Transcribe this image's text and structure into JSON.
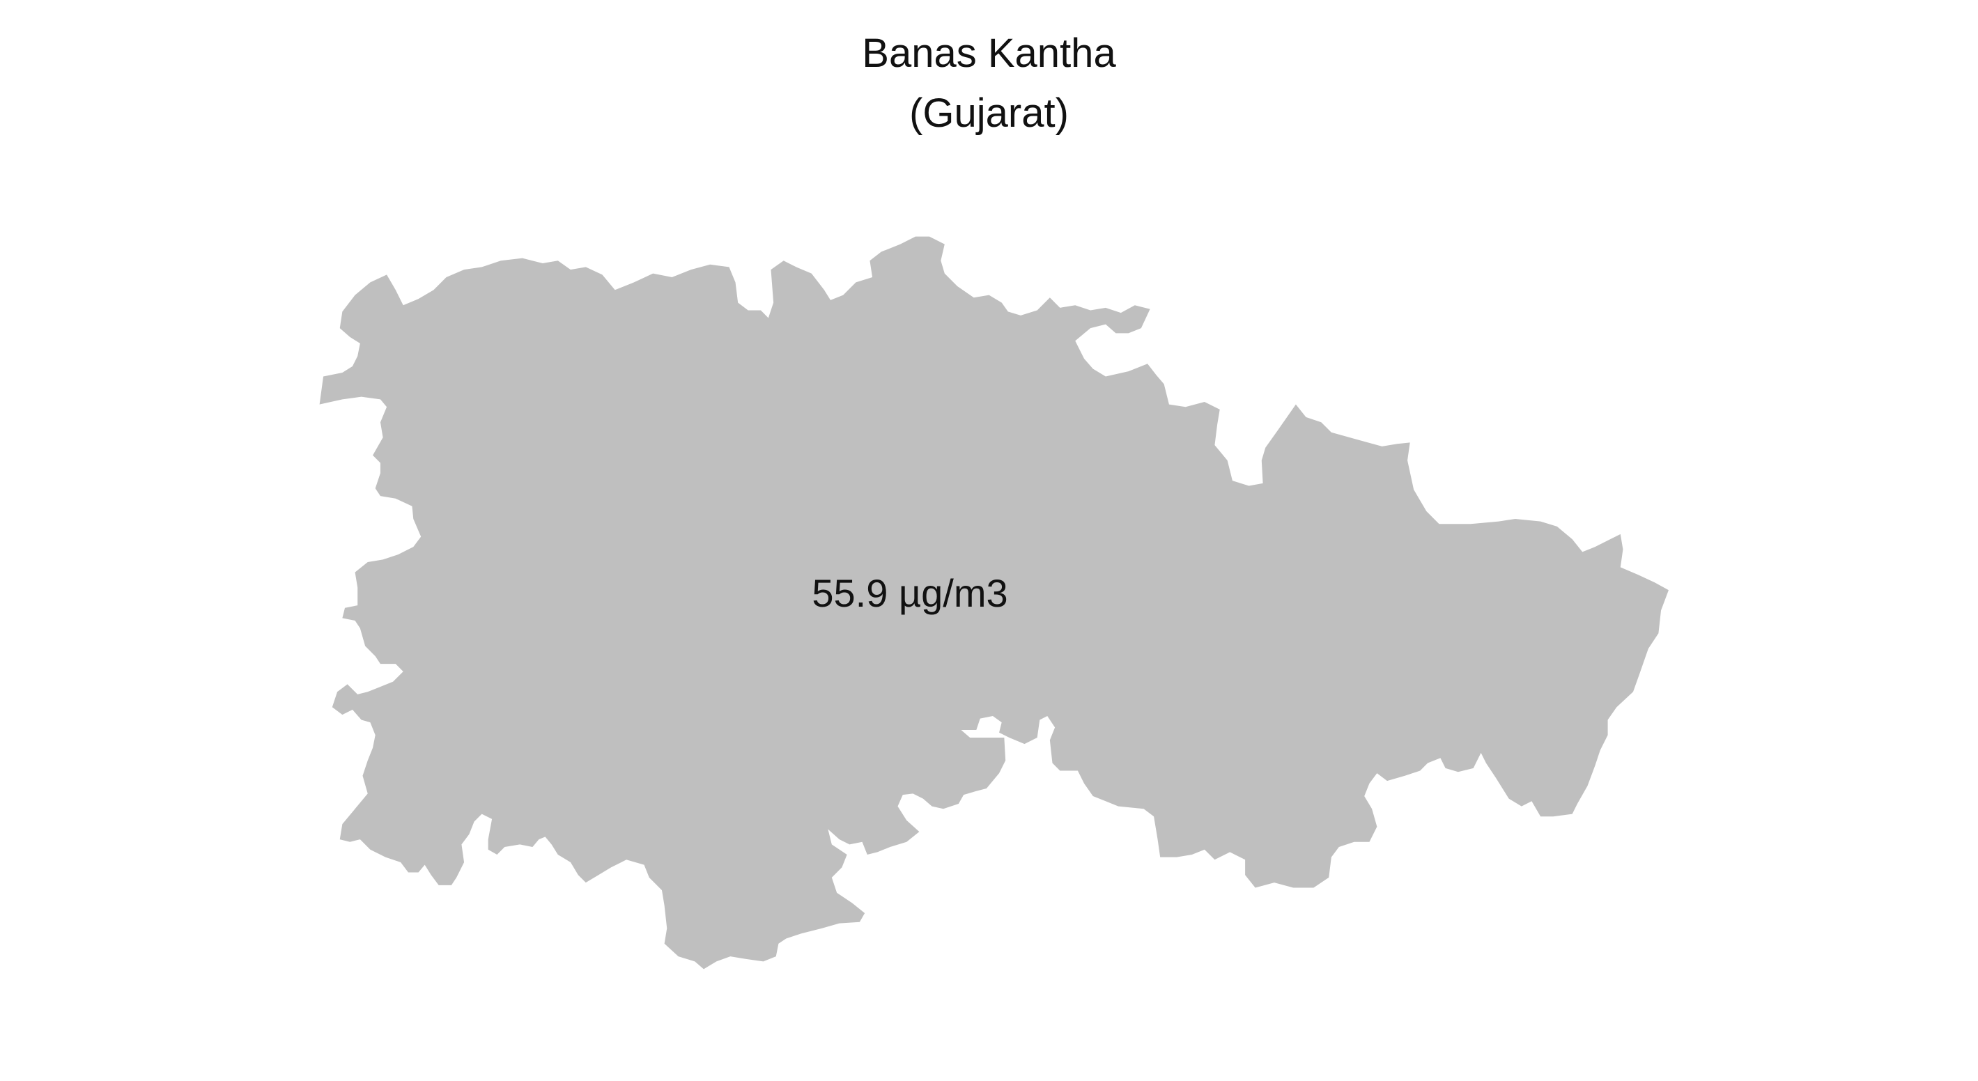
{
  "map": {
    "title_line1": "Banas Kantha",
    "title_line2": "(Gujarat)",
    "region_value_label": "55.9 µg/m3",
    "region_fill": "#bfbfbf",
    "background": "#ffffff"
  }
}
